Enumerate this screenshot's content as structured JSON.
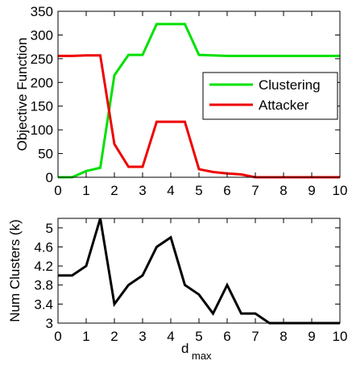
{
  "chart_data": [
    {
      "type": "line",
      "title": "",
      "xlabel": "",
      "ylabel": "Objective Function",
      "xlim": [
        0,
        10
      ],
      "ylim": [
        0,
        350
      ],
      "xticks": [
        0,
        1,
        2,
        3,
        4,
        5,
        6,
        7,
        8,
        9,
        10
      ],
      "yticks": [
        0,
        50,
        100,
        150,
        200,
        250,
        300,
        350
      ],
      "xtick_labels": [
        "0",
        "1",
        "2",
        "3",
        "4",
        "5",
        "6",
        "7",
        "8",
        "9",
        "10"
      ],
      "ytick_labels": [
        "0",
        "50",
        "100",
        "150",
        "200",
        "250",
        "300",
        "350"
      ],
      "grid": false,
      "legend_position": "center-right",
      "x": [
        0,
        0.5,
        1,
        1.5,
        2,
        2.5,
        3,
        3.5,
        4,
        4.5,
        5,
        5.5,
        6,
        6.5,
        7,
        7.5,
        8,
        8.5,
        9,
        9.5,
        10
      ],
      "series": [
        {
          "name": "Clustering",
          "color": "#00e000",
          "values": [
            0,
            0,
            13,
            20,
            215,
            258,
            258,
            323,
            323,
            323,
            258,
            257,
            256,
            256,
            256,
            256,
            256,
            256,
            256,
            256,
            256
          ]
        },
        {
          "name": "Attacker",
          "color": "#ee0000",
          "values": [
            256,
            256,
            257,
            257,
            70,
            22,
            22,
            117,
            117,
            117,
            17,
            11,
            8,
            6,
            0,
            0,
            0,
            0,
            0,
            0,
            0
          ]
        }
      ]
    },
    {
      "type": "line",
      "title": "",
      "xlabel": "d",
      "xlabel_subscript": "max",
      "ylabel": "Num Clusters (k)",
      "xlim": [
        0,
        10
      ],
      "ylim": [
        3,
        5.2
      ],
      "xticks": [
        0,
        1,
        2,
        3,
        4,
        5,
        6,
        7,
        8,
        9,
        10
      ],
      "yticks": [
        3,
        3.4,
        3.8,
        4.2,
        4.6,
        5
      ],
      "xtick_labels": [
        "0",
        "1",
        "2",
        "3",
        "4",
        "5",
        "6",
        "7",
        "8",
        "9",
        "10"
      ],
      "ytick_labels": [
        "3",
        "3.4",
        "3.8",
        "4.2",
        "4.6",
        "5"
      ],
      "grid": false,
      "x": [
        0,
        0.5,
        1,
        1.5,
        2,
        2.5,
        3,
        3.5,
        4,
        4.5,
        5,
        5.5,
        6,
        6.5,
        7,
        7.5,
        8,
        8.5,
        9,
        9.5,
        10
      ],
      "series": [
        {
          "color": "#000000",
          "values": [
            4,
            4,
            4.2,
            5.2,
            3.4,
            3.8,
            4,
            4.6,
            4.8,
            3.8,
            3.6,
            3.2,
            3.8,
            3.2,
            3.2,
            3,
            3,
            3,
            3,
            3,
            3
          ]
        }
      ]
    }
  ]
}
